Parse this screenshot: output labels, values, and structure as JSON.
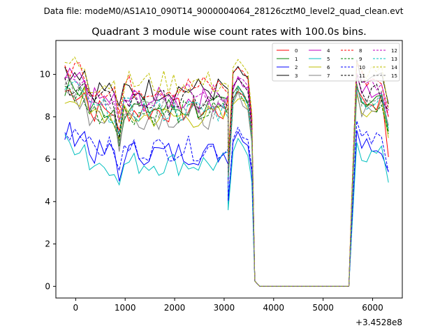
{
  "suptitle": "Data file: modeM0/AS1A10_090T14_9000004064_28126cztM0_level2_quad_clean.evt",
  "chart_data": {
    "type": "line",
    "title": "Quadrant 3 module wise count rates with 100.0s bins.",
    "xlabel": "",
    "ylabel": "",
    "x_offset_label": "+3.4528e8",
    "xlim": [
      -400,
      6600
    ],
    "ylim": [
      -0.55,
      11.6
    ],
    "x_ticks": [
      0,
      1000,
      2000,
      3000,
      4000,
      5000,
      6000
    ],
    "x_tick_labels": [
      "0",
      "1000",
      "2000",
      "3000",
      "4000",
      "5000",
      "6000"
    ],
    "y_ticks": [
      0,
      2,
      4,
      6,
      8,
      10
    ],
    "y_tick_labels": [
      "0",
      "2",
      "4",
      "6",
      "8",
      "10"
    ],
    "grid": false,
    "legend_position": "top-right",
    "legend_columns": 4,
    "x_start": -220,
    "x_step": 100,
    "segments": [
      {
        "from": -220,
        "to": 3080
      },
      {
        "from": 3080,
        "to": 3600,
        "dip_at": 3080
      },
      {
        "from": 3620,
        "to": 3720,
        "drop": true
      },
      {
        "from": 3720,
        "to": 5520,
        "flat": true
      },
      {
        "from": 5520,
        "to": 6320
      }
    ],
    "series": [
      {
        "name": "0",
        "color": "#ff0000",
        "dash": "solid",
        "level": 8.3,
        "end_level": 6.1
      },
      {
        "name": "1",
        "color": "#008000",
        "dash": "solid",
        "level": 8.4,
        "end_level": 7.3
      },
      {
        "name": "2",
        "color": "#0000ff",
        "dash": "solid",
        "level": 6.3,
        "end_level": 5.4
      },
      {
        "name": "3",
        "color": "#000000",
        "dash": "solid",
        "level": 9.3,
        "end_level": 8.6
      },
      {
        "name": "4",
        "color": "#bf00bf",
        "dash": "solid",
        "level": 8.8,
        "end_level": 8.0
      },
      {
        "name": "5",
        "color": "#00bfbf",
        "dash": "solid",
        "level": 5.8,
        "end_level": 4.9
      },
      {
        "name": "6",
        "color": "#bfbf00",
        "dash": "solid",
        "level": 8.0,
        "end_level": 7.0
      },
      {
        "name": "7",
        "color": "#808080",
        "dash": "solid",
        "level": 8.0,
        "end_level": 7.6
      },
      {
        "name": "8",
        "color": "#ff0000",
        "dash": "dashed",
        "level": 9.4,
        "end_level": 8.0
      },
      {
        "name": "9",
        "color": "#008000",
        "dash": "dashed",
        "level": 8.2,
        "end_level": 7.2
      },
      {
        "name": "10",
        "color": "#0000ff",
        "dash": "dashed",
        "level": 6.5,
        "end_level": 5.4
      },
      {
        "name": "11",
        "color": "#000000",
        "dash": "dashed",
        "level": 8.7,
        "end_level": 8.3
      },
      {
        "name": "12",
        "color": "#bf00bf",
        "dash": "dashed",
        "level": 9.0,
        "end_level": 8.3
      },
      {
        "name": "13",
        "color": "#00bfbf",
        "dash": "dashed",
        "level": 8.3,
        "end_level": 7.4
      },
      {
        "name": "14",
        "color": "#bfbf00",
        "dash": "dashed",
        "level": 9.6,
        "end_level": 8.4
      },
      {
        "name": "15",
        "color": "#808080",
        "dash": "dashed",
        "level": 8.4,
        "end_level": 7.5
      }
    ]
  }
}
